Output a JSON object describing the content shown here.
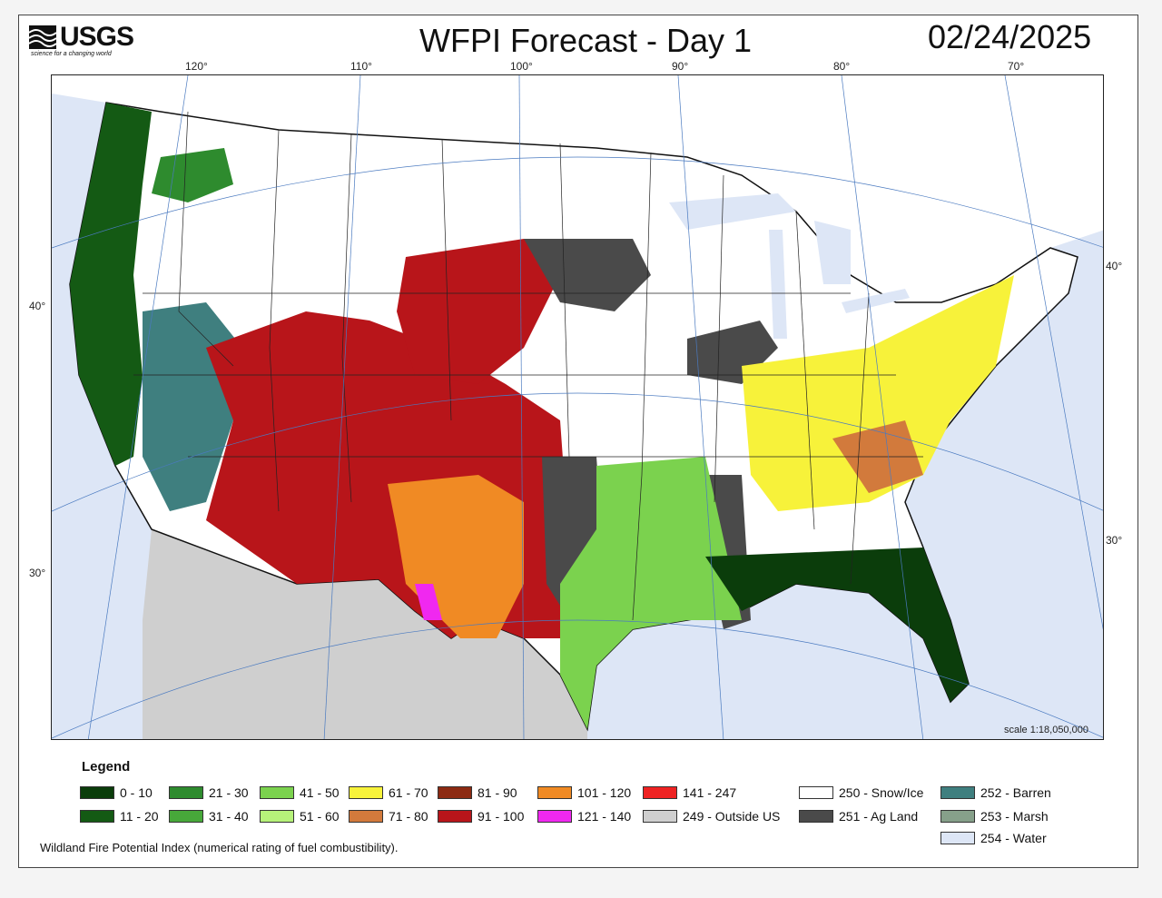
{
  "header": {
    "logo_text": "USGS",
    "logo_tagline": "science for a changing world",
    "title": "WFPI Forecast - Day 1",
    "date": "02/24/2025"
  },
  "map": {
    "longitude_labels": [
      "120°",
      "110°",
      "100°",
      "90°",
      "80°",
      "70°"
    ],
    "latitude_labels_left": [
      "40°",
      "30°"
    ],
    "latitude_labels_right": [
      "40°",
      "30°"
    ],
    "scale_text": "scale 1:18,050,000"
  },
  "legend": {
    "title": "Legend",
    "items": [
      {
        "label": "0 - 10",
        "color": "#0b3d0b"
      },
      {
        "label": "11 - 20",
        "color": "#145a14"
      },
      {
        "label": "21 - 30",
        "color": "#2e8b2e"
      },
      {
        "label": "31 - 40",
        "color": "#47a83a"
      },
      {
        "label": "41 - 50",
        "color": "#7bd24e"
      },
      {
        "label": "51 - 60",
        "color": "#b6f27a"
      },
      {
        "label": "61 - 70",
        "color": "#f7f23a"
      },
      {
        "label": "71 - 80",
        "color": "#d27a3c"
      },
      {
        "label": "81 - 90",
        "color": "#8c2a12"
      },
      {
        "label": "91 - 100",
        "color": "#b8151a"
      },
      {
        "label": "101 - 120",
        "color": "#f08a24"
      },
      {
        "label": "121 - 140",
        "color": "#f028f0"
      },
      {
        "label": "141 - 247",
        "color": "#ee2222"
      },
      {
        "label": "249 - Outside US",
        "color": "#cfcfcf"
      },
      {
        "label": "250 - Snow/Ice",
        "color": "#ffffff"
      },
      {
        "label": "251 - Ag Land",
        "color": "#4a4a4a"
      },
      {
        "label": "252 - Barren",
        "color": "#3f7f7f"
      },
      {
        "label": "253 - Marsh",
        "color": "#86a08a"
      },
      {
        "label": "254 - Water",
        "color": "#dde6f6"
      }
    ]
  },
  "footnote": "Wildland Fire Potential Index (numerical rating of fuel combustibility)."
}
